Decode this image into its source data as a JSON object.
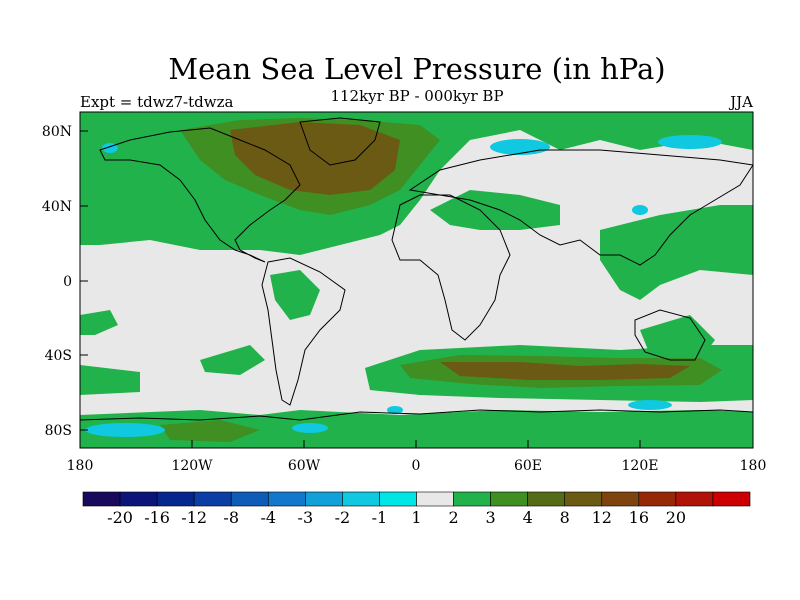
{
  "header": {
    "title": "Mean Sea Level Pressure (in hPa)",
    "subtitle": "112kyr BP - 000kyr BP",
    "experiment": "Expt = tdwz7-tdwza",
    "season": "JJA"
  },
  "map": {
    "lon_labels": [
      "180",
      "120W",
      "60W",
      "0",
      "60E",
      "120E",
      "180"
    ],
    "lat_labels": [
      "80N",
      "40N",
      "0",
      "40S",
      "80S"
    ],
    "colors": {
      "ocean_neutral": "#e8e8e8",
      "land_line": "#000000"
    }
  },
  "colorbar": {
    "labels": [
      "-20",
      "-16",
      "-12",
      "-8",
      "-4",
      "-3",
      "-2",
      "-1",
      "1",
      "2",
      "3",
      "4",
      "8",
      "12",
      "16",
      "20"
    ],
    "colors": [
      "#1a0a5e",
      "#0b1478",
      "#06268f",
      "#0a3ea4",
      "#0e5bb8",
      "#1178cc",
      "#12a0d8",
      "#10c8e0",
      "#00e5e5",
      "#e8e8e8",
      "#22b24c",
      "#3f8f22",
      "#556b18",
      "#6b5a14",
      "#7d4410",
      "#962808",
      "#b01408",
      "#cc0000"
    ]
  }
}
